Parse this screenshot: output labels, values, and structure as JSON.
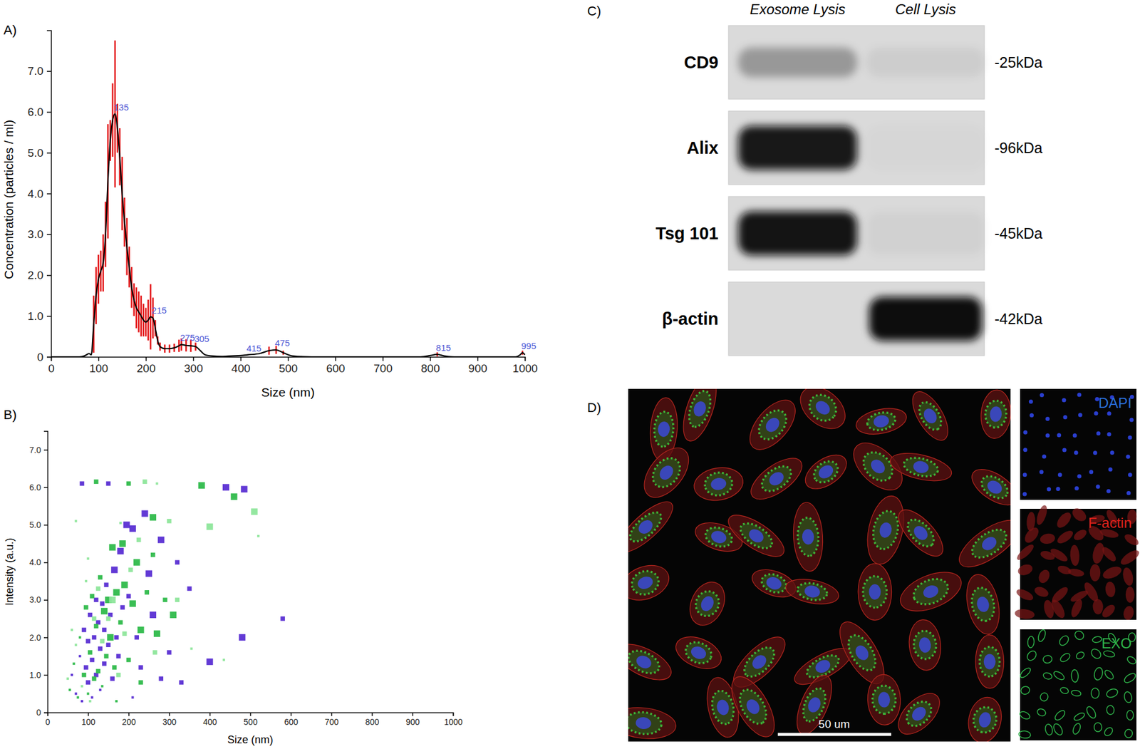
{
  "chart_data": [
    {
      "type": "line",
      "title": "A)",
      "x_label": "Size (nm)",
      "y_label": "Concentration (particles / ml)",
      "color": "#000000",
      "x": [
        0,
        20,
        40,
        60,
        70,
        75,
        80,
        85,
        90,
        95,
        100,
        105,
        110,
        115,
        120,
        125,
        130,
        135,
        140,
        145,
        150,
        155,
        160,
        165,
        170,
        175,
        180,
        185,
        190,
        195,
        200,
        205,
        210,
        215,
        220,
        225,
        230,
        240,
        250,
        260,
        270,
        275,
        285,
        295,
        305,
        315,
        325,
        340,
        360,
        380,
        400,
        415,
        440,
        460,
        475,
        490,
        510,
        550,
        600,
        650,
        700,
        750,
        780,
        800,
        815,
        830,
        850,
        900,
        950,
        980,
        990,
        995,
        1000
      ],
      "values": [
        0,
        0,
        0,
        0,
        0.02,
        0.05,
        0.08,
        0.05,
        0.8,
        1.5,
        1.9,
        2.1,
        2.3,
        3.0,
        4.3,
        5.3,
        5.8,
        5.95,
        5.6,
        4.9,
        4.0,
        3.3,
        2.7,
        2.2,
        1.7,
        1.4,
        1.2,
        1.1,
        1.0,
        0.9,
        0.85,
        0.9,
        0.98,
        0.95,
        0.7,
        0.4,
        0.25,
        0.2,
        0.2,
        0.22,
        0.27,
        0.3,
        0.28,
        0.27,
        0.25,
        0.15,
        0.05,
        0.02,
        0.01,
        0.02,
        0.03,
        0.05,
        0.08,
        0.15,
        0.17,
        0.1,
        0.02,
        0,
        0,
        0,
        0,
        0,
        0,
        0.03,
        0.06,
        0.02,
        0,
        0,
        0,
        0,
        0.05,
        0.1,
        0.05
      ],
      "errors": [
        null,
        null,
        null,
        null,
        null,
        null,
        null,
        null,
        0.7,
        0.7,
        0.6,
        0.5,
        0.7,
        0.8,
        1.4,
        0.5,
        0.9,
        1.8,
        0.6,
        0.7,
        0.9,
        0.6,
        0.7,
        0.5,
        0.5,
        0.4,
        0.5,
        0.5,
        0.5,
        0.4,
        0.35,
        0.5,
        0.8,
        0.5,
        0.2,
        0.1,
        0.1,
        0.1,
        0.1,
        0.1,
        0.15,
        0.15,
        0.15,
        0.15,
        0.1,
        null,
        null,
        null,
        null,
        null,
        null,
        null,
        null,
        0.1,
        0.1,
        0.05,
        null,
        null,
        null,
        null,
        null,
        null,
        null,
        null,
        0.05,
        null,
        null,
        null,
        null,
        null,
        null,
        0.05,
        null
      ],
      "xlim": [
        0,
        1000
      ],
      "ylim": [
        0,
        8
      ],
      "xticks": [
        0,
        100,
        200,
        300,
        400,
        500,
        600,
        700,
        800,
        900,
        1000
      ],
      "yticks": [
        0,
        {
          "value": 1,
          "label": "1.0"
        },
        {
          "value": 2,
          "label": "2.0"
        },
        {
          "value": 3,
          "label": "3.0"
        },
        {
          "value": 4,
          "label": "4.0"
        },
        {
          "value": 5,
          "label": "5.0"
        },
        {
          "value": 6,
          "label": "6.0"
        },
        {
          "value": 7,
          "label": "7.0"
        }
      ],
      "annotations": [
        {
          "x": 135,
          "y": 5.95,
          "text": "135"
        },
        {
          "x": 215,
          "y": 0.98,
          "text": "215"
        },
        {
          "x": 275,
          "y": 0.3,
          "text": "275"
        },
        {
          "x": 305,
          "y": 0.27,
          "text": "305"
        },
        {
          "x": 415,
          "y": 0.05,
          "text": "415"
        },
        {
          "x": 475,
          "y": 0.17,
          "text": "475"
        },
        {
          "x": 815,
          "y": 0.06,
          "text": "815"
        },
        {
          "x": 995,
          "y": 0.1,
          "text": "995"
        }
      ]
    },
    {
      "type": "scatter",
      "title": "B)",
      "x_label": "Size (nm)",
      "y_label": "Intensity (a.u.)",
      "marker": "square",
      "xlim": [
        0,
        1000
      ],
      "ylim": [
        0,
        7.5
      ],
      "xticks": [
        0,
        100,
        200,
        300,
        400,
        500,
        600,
        700,
        800,
        900,
        1000
      ],
      "yticks": [
        0,
        {
          "value": 1,
          "label": "1.0"
        },
        {
          "value": 2,
          "label": "2.0"
        },
        {
          "value": 3,
          "label": "3.0"
        },
        {
          "value": 4,
          "label": "4.0"
        },
        {
          "value": 5,
          "label": "5.0"
        },
        {
          "value": 6,
          "label": "6.0"
        },
        {
          "value": 7,
          "label": "7.0"
        }
      ],
      "series": [
        {
          "color": "#5a2fd3",
          "x": [
            60,
            70,
            80,
            85,
            90,
            95,
            100,
            100,
            105,
            110,
            110,
            115,
            120,
            120,
            125,
            130,
            130,
            135,
            140,
            140,
            145,
            150,
            155,
            160,
            165,
            170,
            175,
            180,
            185,
            195,
            200,
            210,
            220,
            230,
            240,
            250,
            260,
            280,
            300,
            320,
            350,
            85,
            150,
            440,
            485,
            480,
            400,
            580,
            330,
            280,
            210
          ],
          "values": [
            1.0,
            0.5,
            1.5,
            0.3,
            2.2,
            1.2,
            0.8,
            1.9,
            2.6,
            1.4,
            0.4,
            2.0,
            3.0,
            1.0,
            2.4,
            1.7,
            0.6,
            2.9,
            2.2,
            1.3,
            3.4,
            1.8,
            2.6,
            0.9,
            3.8,
            2.0,
            1.5,
            4.3,
            2.8,
            5.0,
            3.1,
            4.9,
            2.0,
            1.2,
            5.3,
            3.7,
            2.6,
            4.6,
            1.6,
            4.0,
            3.3,
            6.1,
            6.1,
            6.0,
            5.95,
            2.0,
            1.35,
            2.5,
            0.8,
            0.9,
            0.4
          ],
          "sizes": [
            1,
            1,
            1,
            1,
            2,
            2,
            2,
            2,
            2,
            2,
            1,
            2,
            2,
            2,
            2,
            2,
            1,
            2,
            2,
            2,
            2,
            2,
            2,
            2,
            3,
            2,
            2,
            3,
            2,
            3,
            2,
            3,
            2,
            2,
            3,
            3,
            3,
            3,
            2,
            2,
            2,
            2,
            2,
            3,
            3,
            3,
            3,
            2,
            2,
            2,
            1
          ]
        },
        {
          "color": "#2fba4b",
          "x": [
            55,
            65,
            75,
            80,
            90,
            95,
            100,
            105,
            110,
            115,
            120,
            125,
            130,
            135,
            140,
            145,
            150,
            155,
            160,
            165,
            170,
            180,
            185,
            190,
            200,
            210,
            220,
            230,
            245,
            260,
            270,
            290,
            310,
            380,
            460,
            120,
            200,
            230,
            170,
            260
          ],
          "values": [
            0.6,
            1.3,
            0.4,
            2.0,
            1.0,
            2.8,
            0.5,
            1.6,
            3.1,
            0.9,
            2.3,
            1.1,
            3.6,
            0.7,
            2.7,
            1.5,
            3.0,
            2.0,
            4.4,
            1.2,
            3.2,
            2.4,
            4.5,
            3.4,
            1.4,
            2.9,
            4.0,
            2.2,
            3.2,
            5.2,
            2.1,
            3.0,
            2.6,
            6.05,
            5.75,
            6.15,
            6.1,
            0.8,
            0.3,
            4.2
          ],
          "sizes": [
            1,
            1,
            1,
            1,
            2,
            2,
            1,
            2,
            2,
            2,
            2,
            2,
            2,
            1,
            3,
            2,
            3,
            3,
            3,
            2,
            3,
            2,
            3,
            3,
            2,
            3,
            3,
            3,
            2,
            3,
            3,
            2,
            3,
            3,
            3,
            2,
            2,
            2,
            1,
            2
          ]
        },
        {
          "color": "#8ee69b",
          "x": [
            50,
            60,
            70,
            85,
            95,
            105,
            115,
            125,
            135,
            150,
            160,
            175,
            190,
            205,
            225,
            240,
            270,
            300,
            320,
            400,
            510,
            520,
            435,
            355,
            265,
            180,
            70,
            100
          ],
          "values": [
            0.9,
            2.2,
            1.8,
            0.7,
            3.5,
            0.3,
            2.5,
            3.3,
            1.9,
            2.5,
            3.0,
            1.0,
            2.1,
            3.8,
            4.6,
            6.15,
            6.1,
            5.1,
            3.0,
            4.95,
            5.35,
            4.7,
            1.4,
            1.7,
            1.6,
            5.05,
            5.1,
            4.1
          ],
          "sizes": [
            1,
            1,
            1,
            1,
            1,
            1,
            2,
            2,
            2,
            2,
            3,
            2,
            2,
            2,
            2,
            2,
            1,
            2,
            2,
            3,
            3,
            1,
            1,
            1,
            2,
            1,
            1,
            1
          ]
        }
      ]
    }
  ],
  "blot": {
    "title": "C)",
    "columns": [
      "Exosome Lysis",
      "Cell Lysis"
    ],
    "rows": [
      {
        "label": "CD9",
        "size": "-25kDa",
        "intensity": [
          0.3,
          0.06
        ]
      },
      {
        "label": "Alix",
        "size": "-96kDa",
        "intensity": [
          0.95,
          0.02
        ]
      },
      {
        "label": "Tsg 101",
        "size": "-45kDa",
        "intensity": [
          0.97,
          0.04
        ]
      },
      {
        "label": "β-actin",
        "size": "-42kDa",
        "intensity": [
          0.0,
          1.0
        ]
      }
    ]
  },
  "micrograph": {
    "title": "D)",
    "scale_bar": "50 um",
    "channels": [
      "DAPI",
      "F-actin",
      "EXO"
    ]
  }
}
